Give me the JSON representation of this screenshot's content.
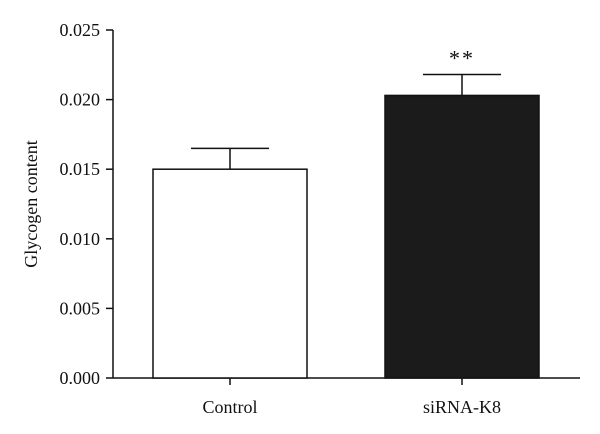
{
  "chart_data": {
    "type": "bar",
    "categories": [
      "Control",
      "siRNA-K8"
    ],
    "values": [
      0.015,
      0.0203
    ],
    "errors": [
      0.0015,
      0.0015
    ],
    "bar_colors": [
      "#ffffff",
      "#1b1b1b"
    ],
    "ylabel": "Glycogen content",
    "xlabel": "",
    "ylim": [
      0,
      0.025
    ],
    "yticks": [
      "0.000",
      "0.005",
      "0.010",
      "0.015",
      "0.020",
      "0.025"
    ],
    "annotations": [
      {
        "category": "siRNA-K8",
        "text": "**"
      }
    ],
    "grid": false
  }
}
